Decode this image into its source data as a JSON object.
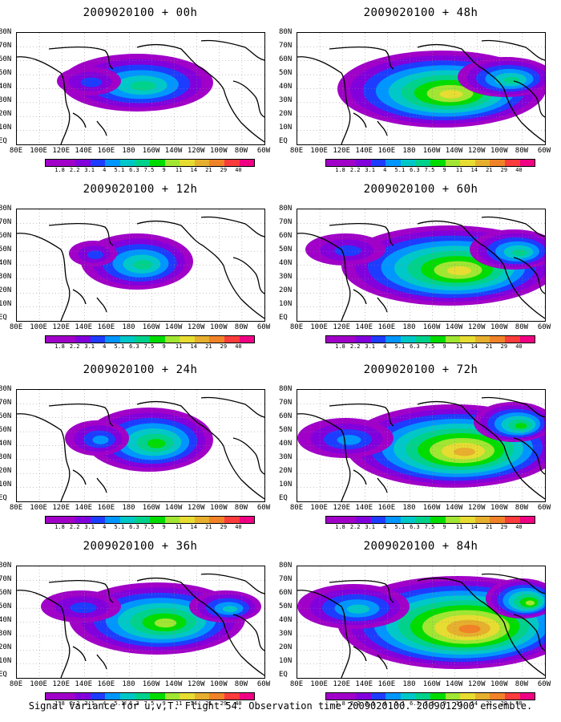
{
  "panels": [
    {
      "title": "2009020100 + 00h"
    },
    {
      "title": "2009020100 + 48h"
    },
    {
      "title": "2009020100 + 12h"
    },
    {
      "title": "2009020100 + 60h"
    },
    {
      "title": "2009020100 + 24h"
    },
    {
      "title": "2009020100 + 72h"
    },
    {
      "title": "2009020100 + 36h"
    },
    {
      "title": "2009020100 + 84h"
    }
  ],
  "lat_labels": [
    "80N",
    "70N",
    "60N",
    "50N",
    "40N",
    "30N",
    "20N",
    "10N",
    "EQ"
  ],
  "lon_labels": [
    "80E",
    "100E",
    "120E",
    "140E",
    "160E",
    "180",
    "160W",
    "140W",
    "120W",
    "100W",
    "80W",
    "60W"
  ],
  "colorbar": {
    "labels": [
      "1.8",
      "2.2",
      "3.1",
      "4",
      "5.1",
      "6.3",
      "7.5",
      "9",
      "11",
      "14",
      "21",
      "29",
      "40"
    ],
    "colors": [
      "#a000c8",
      "#8200dc",
      "#1e3cff",
      "#0096ff",
      "#00c8c8",
      "#00d28c",
      "#00dc00",
      "#a0e632",
      "#e6dc32",
      "#e6af2d",
      "#f08228",
      "#fa3c3c",
      "#f00082"
    ]
  },
  "footer": "Signal Variance for u,v,T. Flight 54. Observation time 2009020100. 2009012900 ensemble."
}
